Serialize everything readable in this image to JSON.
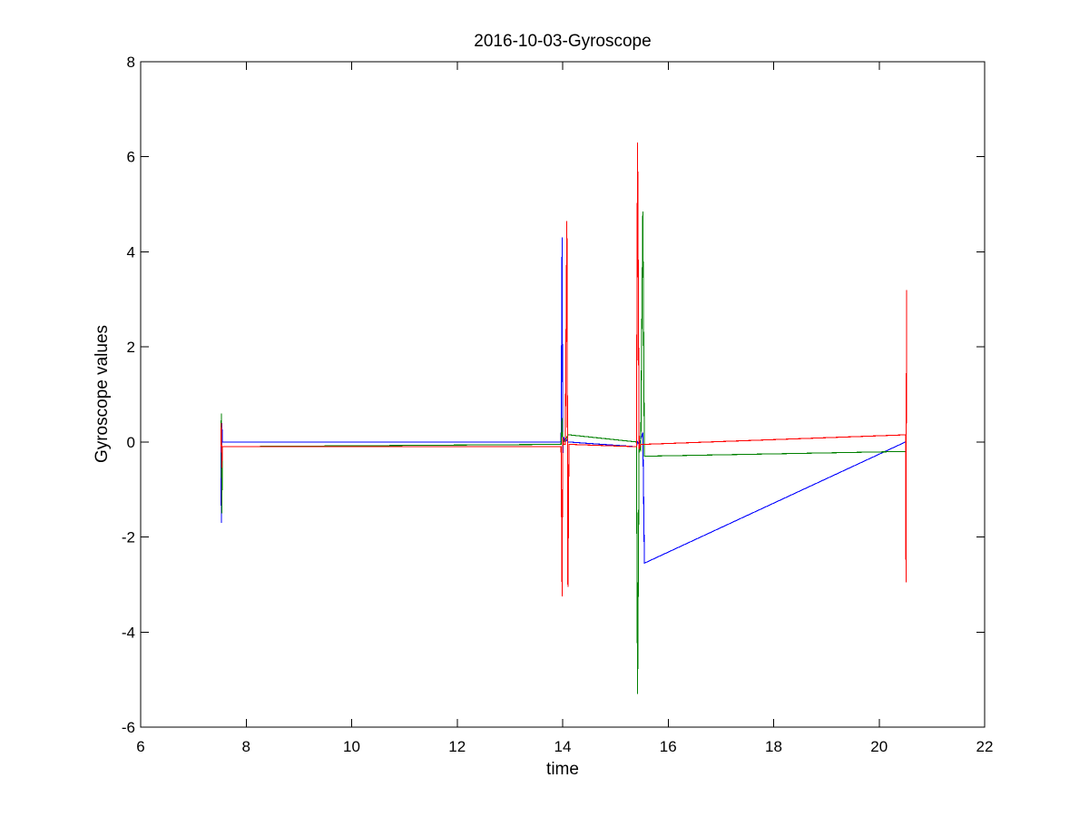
{
  "chart_data": {
    "type": "line",
    "title": "2016-10-03-Gyroscope",
    "xlabel": "time",
    "ylabel": "Gyroscope values",
    "xlim": [
      6,
      22
    ],
    "ylim": [
      -6,
      8
    ],
    "xticks": [
      6,
      8,
      10,
      12,
      14,
      16,
      18,
      20,
      22
    ],
    "yticks": [
      -6,
      -4,
      -2,
      0,
      2,
      4,
      6,
      8
    ],
    "grid": false,
    "legend": "none",
    "series": [
      {
        "color": "#0000ff",
        "x": [
          7.52,
          7.53,
          7.54,
          7.55,
          13.97,
          13.99,
          14.0,
          14.02,
          14.05,
          14.08,
          14.1,
          15.4,
          15.42,
          15.45,
          15.48,
          15.52,
          15.55,
          20.5,
          20.51
        ],
        "y": [
          0.0,
          -1.7,
          0.4,
          0.0,
          0.0,
          4.3,
          -0.3,
          0.1,
          0.0,
          0.05,
          0.0,
          -0.1,
          0.0,
          -0.05,
          0.05,
          0.2,
          -2.55,
          0.0,
          0.0
        ]
      },
      {
        "color": "#008000",
        "x": [
          7.52,
          7.53,
          7.54,
          7.55,
          13.97,
          13.99,
          14.0,
          14.02,
          14.05,
          14.08,
          14.1,
          14.12,
          15.4,
          15.42,
          15.45,
          15.48,
          15.52,
          15.55,
          20.5,
          20.51
        ],
        "y": [
          -0.1,
          0.6,
          -1.5,
          -0.1,
          -0.05,
          0.5,
          -0.1,
          0.0,
          0.05,
          0.1,
          0.15,
          0.15,
          0.0,
          -5.3,
          0.0,
          -0.2,
          4.85,
          -0.3,
          -0.2,
          -0.2
        ]
      },
      {
        "color": "#ff0000",
        "x": [
          7.52,
          7.53,
          7.54,
          7.55,
          13.97,
          13.99,
          14.0,
          14.02,
          14.05,
          14.08,
          14.1,
          14.12,
          15.4,
          15.42,
          15.45,
          15.48,
          15.52,
          15.55,
          20.5,
          20.51,
          20.52
        ],
        "y": [
          -0.1,
          0.4,
          -0.55,
          -0.1,
          -0.1,
          -3.25,
          0.1,
          -0.05,
          -0.05,
          4.65,
          -3.05,
          -0.05,
          -0.1,
          6.3,
          -0.15,
          -0.05,
          -0.05,
          -0.05,
          0.15,
          -2.95,
          3.2
        ]
      }
    ]
  }
}
